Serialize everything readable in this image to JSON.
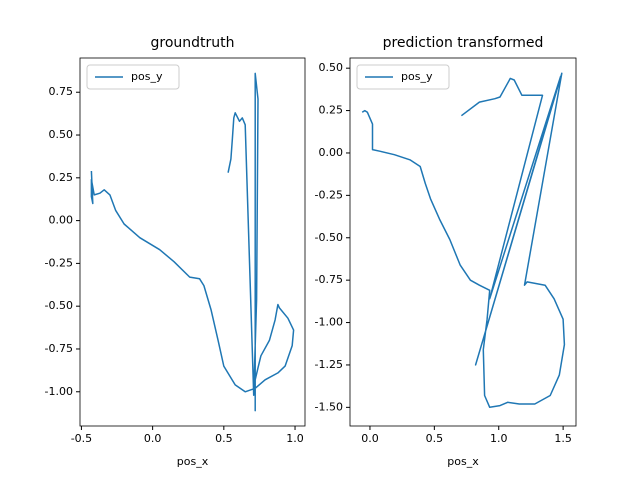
{
  "chart_data": [
    {
      "type": "line",
      "title": "groundtruth",
      "x_label": "pos_x",
      "x": [
        -0.43,
        -0.42,
        -0.43,
        -0.43,
        -0.41,
        -0.37,
        -0.34,
        -0.3,
        -0.26,
        -0.2,
        -0.09,
        0.05,
        0.15,
        0.26,
        0.33,
        0.36,
        0.41,
        0.46,
        0.5,
        0.58,
        0.65,
        0.72,
        0.79,
        0.88,
        0.93,
        0.98,
        0.99,
        0.95,
        0.89,
        0.88,
        0.86,
        0.82,
        0.76,
        0.74,
        0.72,
        0.72,
        0.72,
        0.72,
        0.74,
        0.73,
        0.71,
        0.65,
        0.63,
        0.61,
        0.58,
        0.57,
        0.56,
        0.55,
        0.53
      ],
      "series": [
        {
          "name": "pos_y",
          "color": "#1f77b4",
          "values": [
            0.29,
            0.1,
            0.14,
            0.24,
            0.15,
            0.16,
            0.18,
            0.15,
            0.06,
            -0.02,
            -0.1,
            -0.17,
            -0.24,
            -0.33,
            -0.34,
            -0.38,
            -0.52,
            -0.7,
            -0.85,
            -0.96,
            -1.0,
            -0.98,
            -0.93,
            -0.89,
            -0.85,
            -0.73,
            -0.64,
            -0.57,
            -0.51,
            -0.49,
            -0.58,
            -0.7,
            -0.79,
            -0.86,
            -0.93,
            -1.11,
            0.12,
            0.86,
            0.71,
            -0.46,
            -1.02,
            0.56,
            0.6,
            0.58,
            0.63,
            0.6,
            0.48,
            0.36,
            0.28
          ]
        }
      ],
      "xlim": [
        -0.51,
        1.07
      ],
      "ylim": [
        -1.2,
        0.95
      ],
      "xticks": [
        -0.5,
        {
          "value": 0,
          "label": "0.0"
        },
        0.5,
        {
          "value": 1,
          "label": "1.0"
        }
      ],
      "yticks": [
        0.75,
        {
          "value": 0.5,
          "label": "0.50"
        },
        0.25,
        {
          "value": 0,
          "label": "0.00"
        },
        -0.25,
        {
          "value": -0.5,
          "label": "-0.50"
        },
        -0.75,
        {
          "value": -1,
          "label": "-1.00"
        }
      ],
      "legend": "upper left"
    },
    {
      "type": "line",
      "title": "prediction transformed",
      "x_label": "pos_x",
      "x": [
        -0.06,
        -0.04,
        -0.02,
        0.02,
        0.02,
        0.08,
        0.19,
        0.31,
        0.39,
        0.43,
        0.47,
        0.54,
        0.62,
        0.7,
        0.78,
        0.85,
        0.93,
        0.91,
        0.88,
        0.89,
        0.93,
        1.01,
        1.07,
        1.16,
        1.28,
        1.4,
        1.47,
        1.51,
        1.5,
        1.43,
        1.36,
        1.22,
        1.2,
        1.49,
        0.82,
        1.48,
        0.93,
        1.34,
        1.24,
        1.18,
        1.12,
        1.09,
        1.01,
        0.97,
        0.85,
        0.71
      ],
      "series": [
        {
          "name": "pos_y",
          "color": "#1f77b4",
          "values": [
            0.24,
            0.25,
            0.24,
            0.17,
            0.02,
            0.01,
            -0.01,
            -0.04,
            -0.08,
            -0.18,
            -0.27,
            -0.39,
            -0.51,
            -0.66,
            -0.75,
            -0.78,
            -0.81,
            -0.98,
            -1.16,
            -1.43,
            -1.5,
            -1.49,
            -1.47,
            -1.48,
            -1.48,
            -1.43,
            -1.31,
            -1.13,
            -0.98,
            -0.86,
            -0.78,
            -0.76,
            -0.78,
            0.47,
            -1.25,
            0.45,
            -0.86,
            0.34,
            0.34,
            0.34,
            0.43,
            0.44,
            0.33,
            0.32,
            0.3,
            0.22
          ]
        }
      ],
      "xlim": [
        -0.155,
        1.6
      ],
      "ylim": [
        -1.61,
        0.56
      ],
      "xticks": [
        {
          "value": 0,
          "label": "0.0"
        },
        0.5,
        {
          "value": 1,
          "label": "1.0"
        },
        1.5
      ],
      "yticks": [
        {
          "value": 0.5,
          "label": "0.50"
        },
        0.25,
        {
          "value": 0,
          "label": "0.00"
        },
        -0.25,
        {
          "value": -0.5,
          "label": "-0.50"
        },
        -0.75,
        {
          "value": -1,
          "label": "-1.00"
        },
        -1.25,
        {
          "value": -1.5,
          "label": "-1.50"
        }
      ],
      "legend": "upper left"
    }
  ]
}
